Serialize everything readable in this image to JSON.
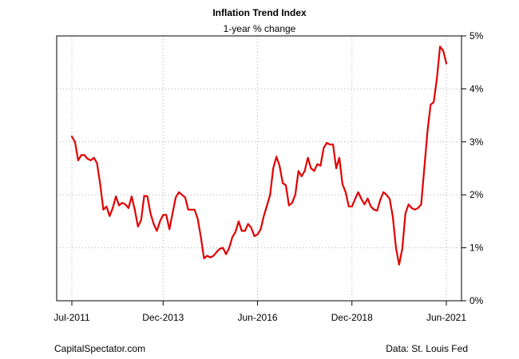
{
  "chart_data": {
    "type": "line",
    "title": "Inflation Trend Index",
    "subtitle": "1-year % change",
    "xlabel": "",
    "ylabel": "",
    "x_tick_labels": [
      "Jul-2011",
      "Dec-2013",
      "Jun-2016",
      "Dec-2018",
      "Jun-2021"
    ],
    "x_tick_dates": [
      "2011-07",
      "2013-12",
      "2016-06",
      "2018-12",
      "2021-06"
    ],
    "y_tick_labels": [
      "0%",
      "1%",
      "2%",
      "3%",
      "4%",
      "5%"
    ],
    "y_ticks": [
      0,
      1,
      2,
      3,
      4,
      5
    ],
    "ylim": [
      0,
      5
    ],
    "y_axis_side": "right",
    "grid": true,
    "grid_style": "dotted",
    "line_color": "#e00000",
    "series": [
      {
        "x": [
          "2011-07",
          "2011-08",
          "2011-09",
          "2011-10",
          "2011-11",
          "2011-12",
          "2012-01",
          "2012-02",
          "2012-03",
          "2012-04",
          "2012-05",
          "2012-06",
          "2012-07",
          "2012-08",
          "2012-09",
          "2012-10",
          "2012-11",
          "2012-12",
          "2013-01",
          "2013-02",
          "2013-03",
          "2013-04",
          "2013-05",
          "2013-06",
          "2013-07",
          "2013-08",
          "2013-09",
          "2013-10",
          "2013-11",
          "2013-12",
          "2014-01",
          "2014-02",
          "2014-03",
          "2014-04",
          "2014-05",
          "2014-06",
          "2014-07",
          "2014-08",
          "2014-09",
          "2014-10",
          "2014-11",
          "2014-12",
          "2015-01",
          "2015-02",
          "2015-03",
          "2015-04",
          "2015-05",
          "2015-06",
          "2015-07",
          "2015-08",
          "2015-09",
          "2015-10",
          "2015-11",
          "2015-12",
          "2016-01",
          "2016-02",
          "2016-03",
          "2016-04",
          "2016-05",
          "2016-06",
          "2016-07",
          "2016-08",
          "2016-09",
          "2016-10",
          "2016-11",
          "2016-12",
          "2017-01",
          "2017-02",
          "2017-03",
          "2017-04",
          "2017-05",
          "2017-06",
          "2017-07",
          "2017-08",
          "2017-09",
          "2017-10",
          "2017-11",
          "2017-12",
          "2018-01",
          "2018-02",
          "2018-03",
          "2018-04",
          "2018-05",
          "2018-06",
          "2018-07",
          "2018-08",
          "2018-09",
          "2018-10",
          "2018-11",
          "2018-12",
          "2019-01",
          "2019-02",
          "2019-03",
          "2019-04",
          "2019-05",
          "2019-06",
          "2019-07",
          "2019-08",
          "2019-09",
          "2019-10",
          "2019-11",
          "2019-12",
          "2020-01",
          "2020-02",
          "2020-03",
          "2020-04",
          "2020-05",
          "2020-06",
          "2020-07",
          "2020-08",
          "2020-09",
          "2020-10",
          "2020-11",
          "2020-12",
          "2021-01",
          "2021-02",
          "2021-03",
          "2021-04",
          "2021-05",
          "2021-06"
        ],
        "values": [
          3.1,
          3.0,
          2.65,
          2.75,
          2.75,
          2.68,
          2.65,
          2.7,
          2.6,
          2.2,
          1.72,
          1.78,
          1.6,
          1.75,
          1.97,
          1.8,
          1.85,
          1.82,
          1.75,
          1.97,
          1.72,
          1.4,
          1.52,
          1.98,
          1.97,
          1.65,
          1.45,
          1.32,
          1.5,
          1.62,
          1.62,
          1.35,
          1.65,
          1.95,
          2.05,
          2.0,
          1.95,
          1.72,
          1.72,
          1.72,
          1.55,
          1.2,
          0.8,
          0.85,
          0.82,
          0.85,
          0.92,
          0.98,
          1.0,
          0.88,
          1.0,
          1.2,
          1.3,
          1.5,
          1.32,
          1.32,
          1.45,
          1.38,
          1.22,
          1.25,
          1.35,
          1.6,
          1.8,
          2.0,
          2.5,
          2.72,
          2.55,
          2.22,
          2.18,
          1.8,
          1.85,
          2.0,
          2.45,
          2.35,
          2.45,
          2.7,
          2.5,
          2.45,
          2.58,
          2.55,
          2.88,
          2.98,
          2.95,
          2.95,
          2.5,
          2.7,
          2.2,
          2.05,
          1.78,
          1.78,
          1.92,
          2.05,
          1.92,
          1.82,
          1.93,
          1.78,
          1.72,
          1.7,
          1.9,
          2.05,
          2.0,
          1.92,
          1.58,
          1.0,
          0.68,
          0.98,
          1.65,
          1.82,
          1.75,
          1.72,
          1.75,
          1.82,
          2.5,
          3.2,
          3.7,
          3.75,
          4.2,
          4.8,
          4.72,
          4.48
        ]
      }
    ]
  },
  "footer": {
    "left": "CapitalSpectator.com",
    "right": "Data: St. Louis Fed"
  }
}
